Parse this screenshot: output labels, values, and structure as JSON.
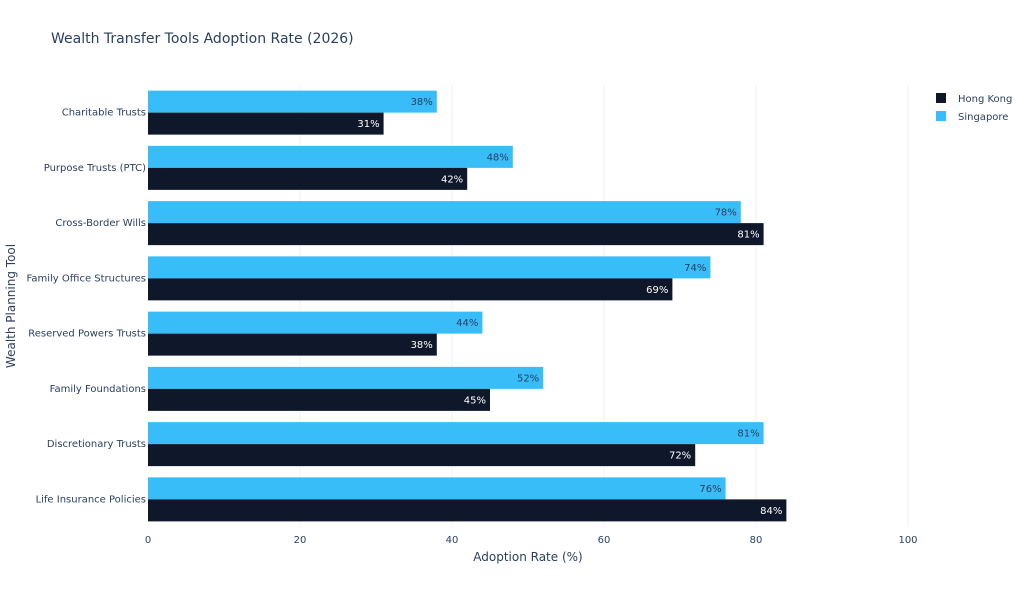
{
  "chart_data": {
    "type": "bar",
    "orientation": "horizontal",
    "title": "Wealth Transfer Tools Adoption Rate (2026)",
    "xlabel": "Adoption Rate (%)",
    "ylabel": "Wealth Planning Tool",
    "xlim": [
      0,
      100
    ],
    "xticks": [
      0,
      20,
      40,
      60,
      80,
      100
    ],
    "grid": "vertical",
    "legend_position": "top-right",
    "categories": [
      "Charitable Trusts",
      "Purpose Trusts (PTC)",
      "Cross-Border Wills",
      "Family Office Structures",
      "Reserved Powers Trusts",
      "Family Foundations",
      "Discretionary Trusts",
      "Life Insurance Policies"
    ],
    "series": [
      {
        "name": "Hong Kong",
        "color": "#0f172a",
        "label_color": "#ffffff",
        "values": [
          31,
          42,
          81,
          69,
          38,
          45,
          72,
          84
        ]
      },
      {
        "name": "Singapore",
        "color": "#38bdf8",
        "label_color": "#2a3f5f",
        "values": [
          38,
          48,
          78,
          74,
          44,
          52,
          81,
          76
        ]
      }
    ],
    "value_suffix": "%"
  }
}
